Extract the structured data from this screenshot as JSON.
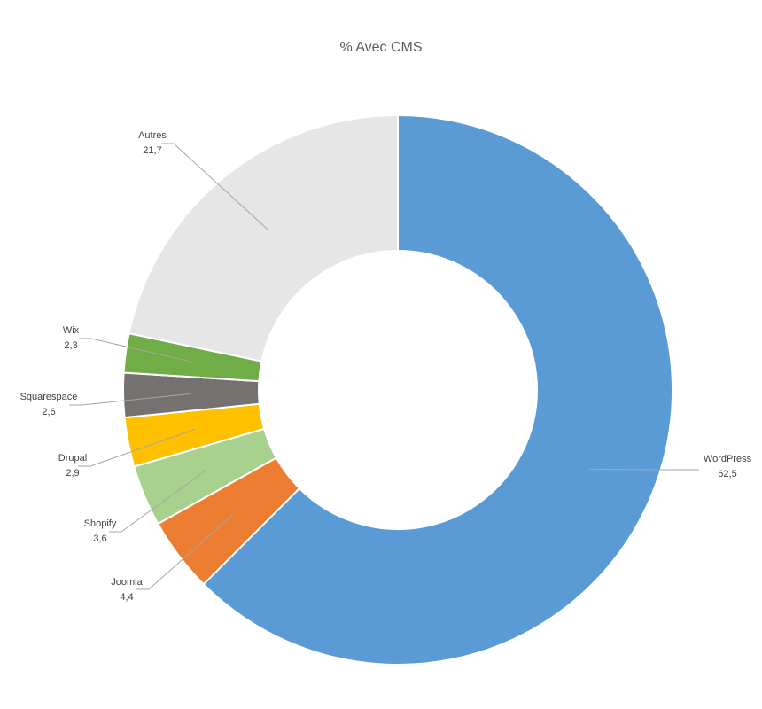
{
  "chart_data": {
    "type": "pie",
    "variant": "doughnut",
    "title": "% Avec CMS",
    "slices": [
      {
        "label": "WordPress",
        "value": 62.5,
        "value_label": "62,5",
        "color": "#5B9BD5"
      },
      {
        "label": "Joomla",
        "value": 4.4,
        "value_label": "4,4",
        "color": "#ED7D31"
      },
      {
        "label": "Shopify",
        "value": 3.6,
        "value_label": "3,6",
        "color": "#A9D18E"
      },
      {
        "label": "Drupal",
        "value": 2.9,
        "value_label": "2,9",
        "color": "#FFC000"
      },
      {
        "label": "Squarespace",
        "value": 2.6,
        "value_label": "2,6",
        "color": "#767171"
      },
      {
        "label": "Wix",
        "value": 2.3,
        "value_label": "2,3",
        "color": "#70AD47"
      },
      {
        "label": "Autres",
        "value": 21.7,
        "value_label": "21,7",
        "color": "#E7E6E6"
      }
    ],
    "start_position": "top",
    "direction": "clockwise",
    "legend": "none",
    "data_labels": "outside-with-leader-lines"
  }
}
